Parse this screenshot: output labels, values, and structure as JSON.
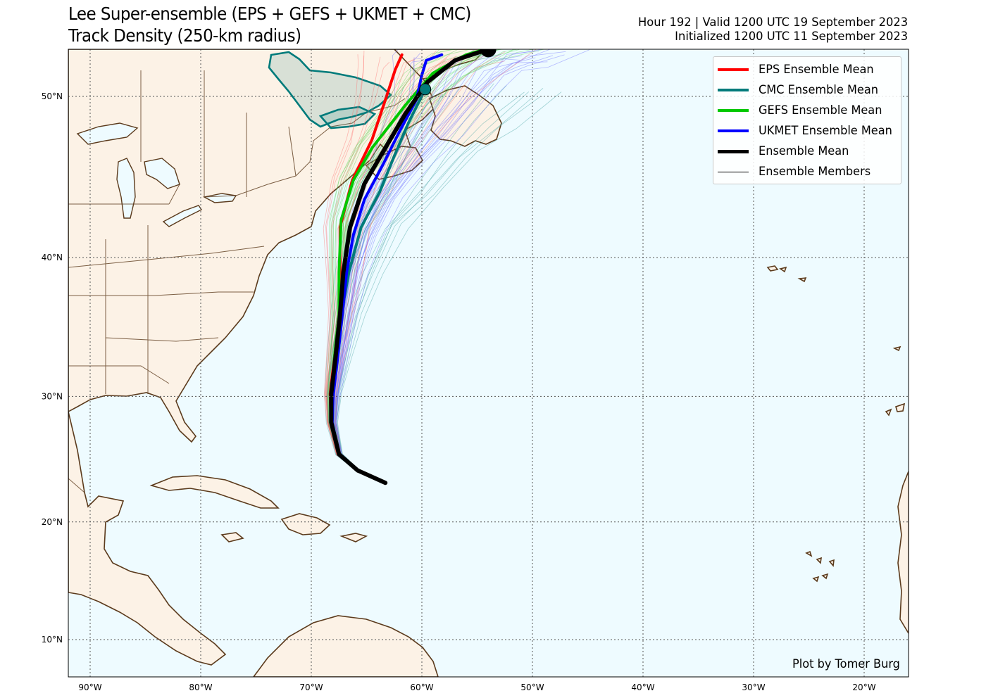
{
  "header": {
    "title_line1": "Lee Super-ensemble (EPS + GEFS + UKMET + CMC)",
    "title_line2": "Track Density (250-km radius)",
    "valid_line": "Hour 192 | Valid 1200 UTC 19 September 2023",
    "init_line": "Initialized 1200 UTC 11 September 2023"
  },
  "map": {
    "ocean_color": "#eefbff",
    "land_color": "#fcf2e6",
    "coast_color": "#5b3a1c",
    "grid_color": "#555555",
    "lon_ticks": [
      "90°W",
      "80°W",
      "70°W",
      "60°W",
      "50°W",
      "40°W",
      "30°W",
      "20°W"
    ],
    "lat_ticks": [
      "50°N",
      "40°N",
      "30°N",
      "20°N",
      "10°N"
    ]
  },
  "legend": {
    "items": [
      {
        "label": "EPS Ensemble Mean",
        "color": "#ff0000",
        "width": 4
      },
      {
        "label": "CMC Ensemble Mean",
        "color": "#007b7b",
        "width": 4
      },
      {
        "label": "GEFS Ensemble Mean",
        "color": "#00c800",
        "width": 4
      },
      {
        "label": "UKMET Ensemble Mean",
        "color": "#0000ff",
        "width": 4
      },
      {
        "label": "Ensemble Mean",
        "color": "#000000",
        "width": 5
      },
      {
        "label": "Ensemble Members",
        "color": "#000000",
        "width": 1
      }
    ]
  },
  "credit": "Plot by Tomer Burg",
  "chart_data": {
    "type": "map-tracks",
    "start_point": {
      "lon": -63.3,
      "lat": 23.2
    },
    "tracks": [
      {
        "name": "EPS Ensemble Mean",
        "color": "#ff0000",
        "points": [
          [
            -63.3,
            23.2
          ],
          [
            -65.8,
            24.2
          ],
          [
            -67.5,
            25.5
          ],
          [
            -68.2,
            28.0
          ],
          [
            -68.3,
            30.2
          ],
          [
            -67.9,
            33.0
          ],
          [
            -67.5,
            36.0
          ],
          [
            -67.4,
            38.5
          ],
          [
            -67.4,
            42.0
          ],
          [
            -66.3,
            45.0
          ],
          [
            -64.5,
            47.5
          ],
          [
            -63.2,
            50.0
          ],
          [
            -62.4,
            51.5
          ],
          [
            -61.8,
            52.3
          ]
        ]
      },
      {
        "name": "CMC Ensemble Mean",
        "color": "#007b7b",
        "points": [
          [
            -63.3,
            23.2
          ],
          [
            -65.8,
            24.2
          ],
          [
            -67.5,
            25.5
          ],
          [
            -68.2,
            28.0
          ],
          [
            -68.2,
            30.2
          ],
          [
            -67.8,
            33.0
          ],
          [
            -67.3,
            36.0
          ],
          [
            -66.6,
            39.0
          ],
          [
            -65.5,
            42.0
          ],
          [
            -63.8,
            44.3
          ],
          [
            -62.5,
            46.5
          ],
          [
            -61.2,
            48.5
          ],
          [
            -59.7,
            50.4
          ]
        ]
      },
      {
        "name": "GEFS Ensemble Mean",
        "color": "#00c800",
        "points": [
          [
            -63.3,
            23.2
          ],
          [
            -65.8,
            24.2
          ],
          [
            -67.5,
            25.5
          ],
          [
            -68.2,
            28.0
          ],
          [
            -68.2,
            30.2
          ],
          [
            -67.9,
            33.0
          ],
          [
            -67.5,
            36.0
          ],
          [
            -67.5,
            39.0
          ],
          [
            -67.3,
            42.5
          ],
          [
            -66.2,
            45.0
          ],
          [
            -64.5,
            47.0
          ],
          [
            -61.5,
            49.5
          ],
          [
            -59.0,
            51.3
          ],
          [
            -56.0,
            52.3
          ],
          [
            -52.5,
            52.9
          ],
          [
            -49.0,
            53.2
          ],
          [
            -46.0,
            53.4
          ]
        ]
      },
      {
        "name": "UKMET Ensemble Mean",
        "color": "#0000ff",
        "points": [
          [
            -63.3,
            23.2
          ],
          [
            -65.8,
            24.2
          ],
          [
            -67.5,
            25.5
          ],
          [
            -68.1,
            28.0
          ],
          [
            -68.0,
            30.2
          ],
          [
            -67.6,
            33.0
          ],
          [
            -67.2,
            36.0
          ],
          [
            -66.8,
            39.0
          ],
          [
            -66.2,
            41.5
          ],
          [
            -65.2,
            43.8
          ],
          [
            -63.5,
            46.0
          ],
          [
            -62.0,
            48.0
          ],
          [
            -60.5,
            49.8
          ],
          [
            -60.0,
            51.2
          ],
          [
            -59.6,
            52.0
          ],
          [
            -58.2,
            52.3
          ]
        ]
      },
      {
        "name": "Ensemble Mean",
        "color": "#000000",
        "points": [
          [
            -63.3,
            23.2
          ],
          [
            -65.8,
            24.2
          ],
          [
            -67.5,
            25.5
          ],
          [
            -68.2,
            28.0
          ],
          [
            -68.2,
            30.2
          ],
          [
            -67.8,
            33.0
          ],
          [
            -67.4,
            36.0
          ],
          [
            -67.1,
            39.0
          ],
          [
            -66.5,
            42.0
          ],
          [
            -65.2,
            44.8
          ],
          [
            -63.3,
            47.0
          ],
          [
            -61.5,
            49.0
          ],
          [
            -59.5,
            50.8
          ],
          [
            -57.0,
            52.0
          ],
          [
            -54.0,
            52.6
          ]
        ]
      }
    ],
    "end_markers": [
      {
        "series": "Ensemble Mean",
        "lon": -54.0,
        "lat": 52.6
      },
      {
        "series": "GEFS Ensemble Mean",
        "lon": -46.0,
        "lat": 53.4
      },
      {
        "series": "CMC Ensemble Mean",
        "lon": -59.7,
        "lat": 50.4
      }
    ],
    "xlim": [
      -92,
      -16
    ],
    "ylim": [
      7,
      53.5
    ]
  }
}
